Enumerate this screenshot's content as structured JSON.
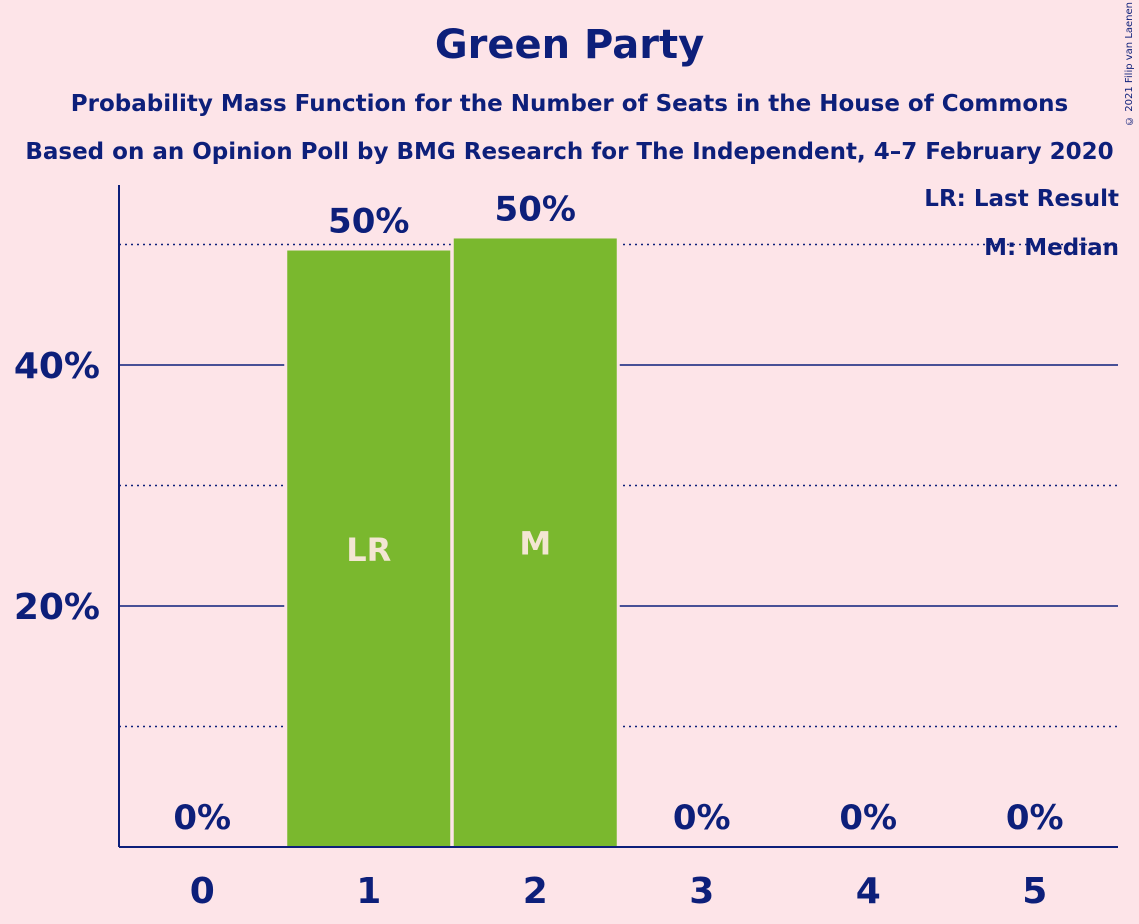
{
  "copyright": "© 2021 Filip van Laenen",
  "legend": {
    "last_result": "LR: Last Result",
    "median": "M: Median"
  },
  "colors": {
    "background": "#fde4e8",
    "text": "#0d1f7a",
    "bar": "#7ab82e",
    "bar_label": "#f3e6d3"
  },
  "chart_data": {
    "type": "bar",
    "title": "Green Party",
    "subtitle": "Probability Mass Function for the Number of Seats in the House of Commons",
    "subtitle2": "Based on an Opinion Poll by BMG Research for The Independent, 4–7 February 2020",
    "xlabel": "",
    "ylabel": "",
    "categories": [
      "0",
      "1",
      "2",
      "3",
      "4",
      "5"
    ],
    "values": [
      0,
      49.5,
      50.5,
      0,
      0,
      0
    ],
    "data_labels": [
      "0%",
      "50%",
      "50%",
      "0%",
      "0%",
      "0%"
    ],
    "bar_markers": [
      "",
      "LR",
      "M",
      "",
      "",
      ""
    ],
    "ylim": [
      0,
      55
    ],
    "y_ticks": [
      {
        "value": 20,
        "label": "20%"
      },
      {
        "value": 40,
        "label": "40%"
      }
    ],
    "y_dotted_gridlines": [
      10,
      30,
      50
    ],
    "grid": true,
    "legend_position": "top-right"
  }
}
